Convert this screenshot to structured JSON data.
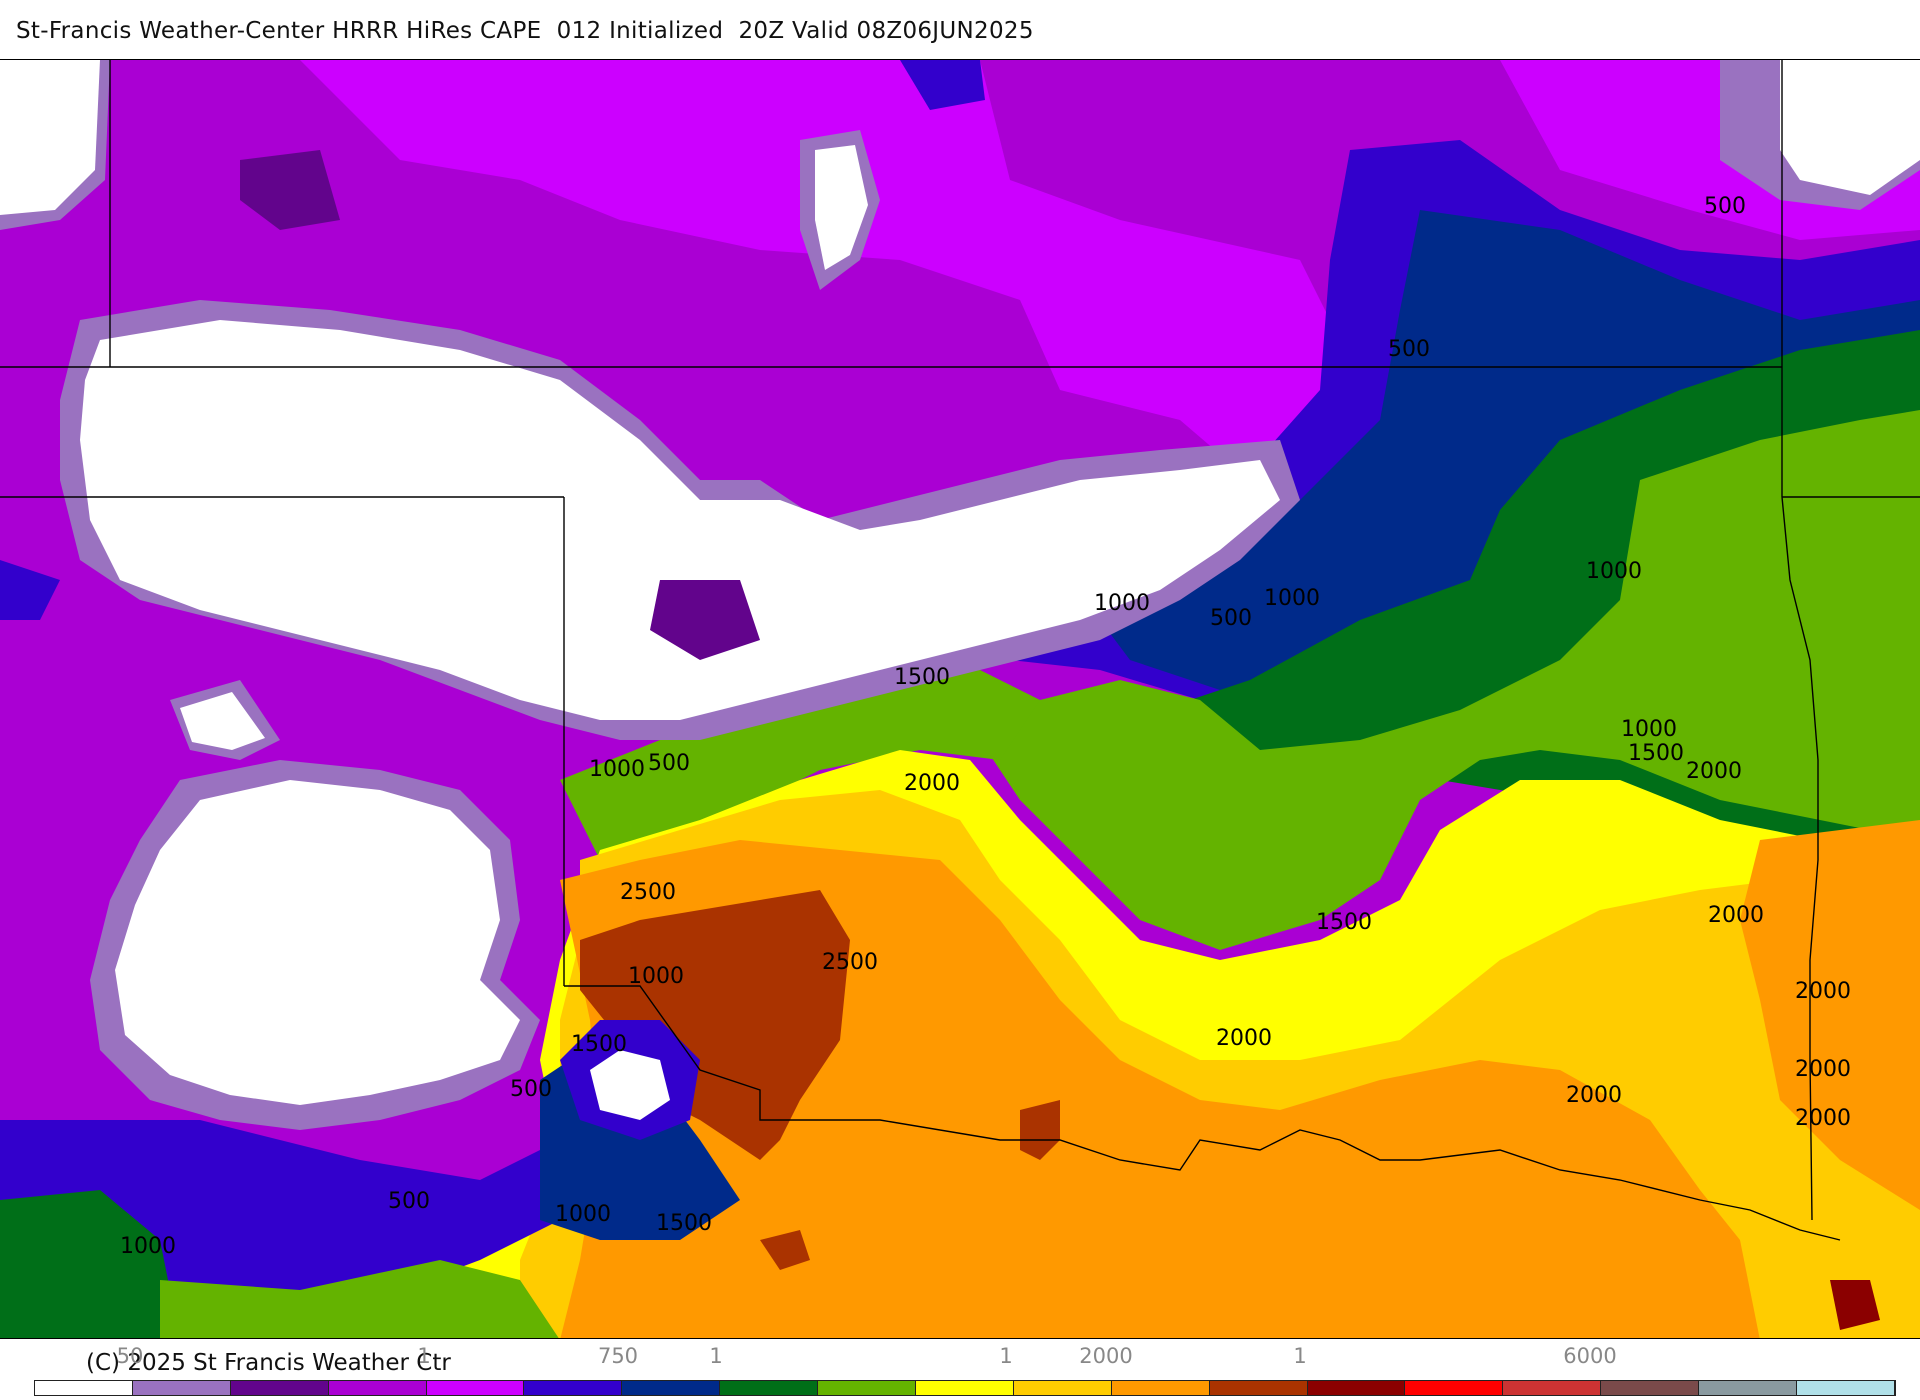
{
  "header": {
    "title": "St-Francis Weather-Center HRRR HiRes CAPE  012 Initialized  20Z Valid 08Z06JUN2025"
  },
  "footer": {
    "copyright": "(C) 2025 St Francis Weather Ctr"
  },
  "legend": {
    "colors": [
      "#ffffff",
      "#9a72c0",
      "#62048c",
      "#aa00d3",
      "#cc00ff",
      "#3300cc",
      "#002a8a",
      "#006f18",
      "#64b300",
      "#ffff00",
      "#ffcc00",
      "#ff9900",
      "#aa3300",
      "#8b0000",
      "#ff0000",
      "#cc3333",
      "#7a4a4a",
      "#8a9aa0",
      "#b0e0e8"
    ],
    "tick_labels": [
      "50",
      "1",
      "750",
      "1",
      "1",
      "2000",
      "1",
      "6000"
    ]
  },
  "contour_labels": [
    "500",
    "500",
    "1000",
    "1000",
    "500",
    "1000",
    "1500",
    "1000",
    "1500",
    "2000",
    "2000",
    "1000",
    "500",
    "2000",
    "2500",
    "2500",
    "1000",
    "1500",
    "2000",
    "2000",
    "1500",
    "2000",
    "500",
    "2000",
    "2000",
    "500",
    "1000",
    "1500",
    "1000"
  ],
  "map_colors": {
    "background": "#aa00d3",
    "none": "#ffffff",
    "light_purple": "#9a72c0",
    "dark_purple": "#62048c",
    "magenta": "#cc00ff",
    "blue": "#3300cc",
    "navy": "#002a8a",
    "dark_green": "#006f18",
    "light_green": "#64b300",
    "yellow": "#ffff00",
    "gold": "#ffcc00",
    "orange": "#ff9900",
    "dark_orange": "#aa3300",
    "dark_red": "#8b0000",
    "boundary": "#000000"
  }
}
